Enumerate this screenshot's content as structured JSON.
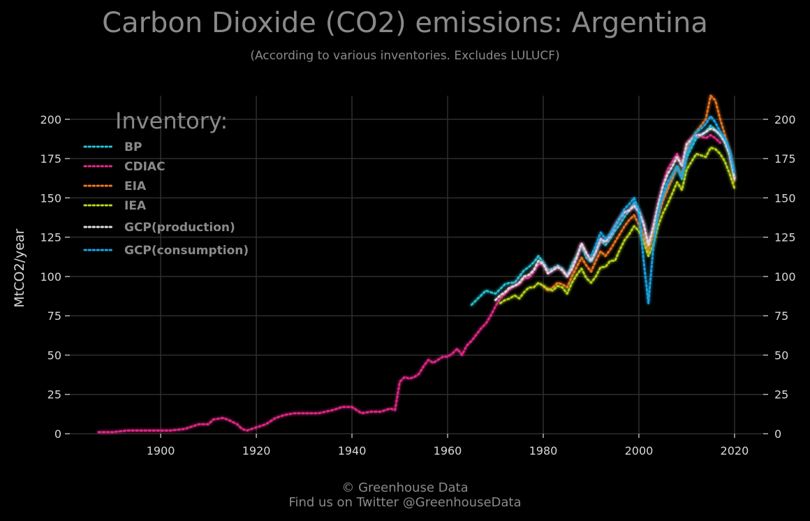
{
  "title": "Carbon Dioxide (CO2) emissions: Argentina",
  "subtitle": "(According to various inventories. Excludes LULUCF)",
  "footer": {
    "line1": "© Greenhouse Data",
    "line2": "Find us on Twitter @GreenhouseData"
  },
  "chart_data": {
    "type": "line",
    "title": "Carbon Dioxide (CO2) emissions: Argentina",
    "subtitle": "(According to various inventories. Excludes LULUCF)",
    "ylabel": "MtCO2/year",
    "xlabel": "",
    "xlim": [
      1881,
      2026
    ],
    "ylim": [
      0,
      215
    ],
    "xticks": [
      1900,
      1920,
      1940,
      1960,
      1980,
      2000,
      2020
    ],
    "yticks": [
      0,
      25,
      50,
      75,
      100,
      125,
      150,
      175,
      200
    ],
    "grid": true,
    "legend": {
      "title": "Inventory:",
      "position": "top-left"
    },
    "series": [
      {
        "name": "BP",
        "color": "#22c7d6",
        "x": [
          1965,
          1966,
          1967,
          1968,
          1969,
          1970,
          1971,
          1972,
          1973,
          1974,
          1975,
          1976,
          1977,
          1978,
          1979,
          1980,
          1981,
          1982,
          1983,
          1984,
          1985,
          1986,
          1987,
          1988,
          1989,
          1990,
          1991,
          1992,
          1993,
          1994,
          1995,
          1996,
          1997,
          1998,
          1999,
          2000,
          2001,
          2002,
          2003,
          2004,
          2005,
          2006,
          2007,
          2008,
          2009,
          2010,
          2011,
          2012,
          2013,
          2014,
          2015,
          2016,
          2017,
          2018,
          2019,
          2020
        ],
        "y": [
          82,
          85,
          88,
          91,
          90,
          89,
          92,
          95,
          96,
          96,
          100,
          104,
          106,
          109,
          113,
          109,
          104,
          105,
          107,
          105,
          100,
          108,
          113,
          120,
          112,
          109,
          115,
          123,
          120,
          124,
          129,
          133,
          138,
          142,
          147,
          142,
          134,
          120,
          131,
          142,
          150,
          157,
          162,
          170,
          162,
          176,
          182,
          188,
          190,
          192,
          196,
          193,
          190,
          186,
          178,
          163
        ]
      },
      {
        "name": "CDIAC",
        "color": "#e82a8c",
        "x": [
          1887,
          1890,
          1893,
          1896,
          1899,
          1902,
          1905,
          1908,
          1910,
          1911,
          1913,
          1914,
          1916,
          1917,
          1918,
          1920,
          1922,
          1924,
          1926,
          1928,
          1930,
          1933,
          1936,
          1938,
          1940,
          1942,
          1944,
          1946,
          1948,
          1949,
          1950,
          1951,
          1952,
          1953,
          1954,
          1955,
          1956,
          1957,
          1958,
          1959,
          1960,
          1961,
          1962,
          1963,
          1964,
          1965,
          1966,
          1967,
          1968,
          1969,
          1970,
          1971,
          1972,
          1973,
          1974,
          1975,
          1976,
          1977,
          1978,
          1979,
          1980,
          1981,
          1982,
          1983,
          1984,
          1985,
          1986,
          1987,
          1988,
          1989,
          1990,
          1991,
          1992,
          1993,
          1994,
          1995,
          1996,
          1997,
          1998,
          1999,
          2000,
          2001,
          2002,
          2003,
          2004,
          2005,
          2006,
          2007,
          2008,
          2009,
          2010,
          2011,
          2012,
          2013,
          2014,
          2015,
          2016,
          2017
        ],
        "y": [
          1,
          1,
          2,
          2,
          2,
          2,
          3,
          6,
          6,
          9,
          10,
          9,
          6,
          3,
          2,
          4,
          6,
          10,
          12,
          13,
          13,
          13,
          15,
          17,
          17,
          13,
          14,
          14,
          16,
          15,
          33,
          36,
          35,
          36,
          38,
          43,
          47,
          45,
          47,
          49,
          49,
          51,
          54,
          50,
          56,
          59,
          63,
          67,
          70,
          75,
          81,
          86,
          89,
          92,
          94,
          95,
          99,
          99,
          103,
          108,
          108,
          102,
          104,
          106,
          104,
          100,
          104,
          112,
          121,
          115,
          110,
          116,
          124,
          122,
          126,
          132,
          137,
          141,
          142,
          145,
          141,
          133,
          120,
          132,
          146,
          158,
          168,
          173,
          178,
          171,
          185,
          188,
          190,
          189,
          188,
          190,
          188,
          185
        ]
      },
      {
        "name": "EIA",
        "color": "#f07820",
        "x": [
          1980,
          1981,
          1982,
          1983,
          1984,
          1985,
          1986,
          1987,
          1988,
          1989,
          1990,
          1991,
          1992,
          1993,
          1994,
          1995,
          1996,
          1997,
          1998,
          1999,
          2000,
          2001,
          2002,
          2003,
          2004,
          2005,
          2006,
          2007,
          2008,
          2009,
          2010,
          2011,
          2012,
          2013,
          2014,
          2015,
          2016,
          2017,
          2018,
          2019,
          2020
        ],
        "y": [
          94,
          91,
          93,
          96,
          95,
          93,
          100,
          106,
          112,
          107,
          103,
          110,
          116,
          113,
          117,
          122,
          127,
          132,
          136,
          139,
          133,
          126,
          116,
          127,
          138,
          148,
          155,
          163,
          170,
          164,
          180,
          187,
          192,
          196,
          200,
          215,
          212,
          200,
          190,
          178,
          160
        ]
      },
      {
        "name": "IEA",
        "color": "#b8d81a",
        "x": [
          1971,
          1972,
          1973,
          1974,
          1975,
          1976,
          1977,
          1978,
          1979,
          1980,
          1981,
          1982,
          1983,
          1984,
          1985,
          1986,
          1987,
          1988,
          1989,
          1990,
          1991,
          1992,
          1993,
          1994,
          1995,
          1996,
          1997,
          1998,
          1999,
          2000,
          2001,
          2002,
          2003,
          2004,
          2005,
          2006,
          2007,
          2008,
          2009,
          2010,
          2011,
          2012,
          2013,
          2014,
          2015,
          2016,
          2017,
          2018,
          2019,
          2020
        ],
        "y": [
          83,
          85,
          86,
          88,
          86,
          90,
          93,
          93,
          96,
          94,
          92,
          91,
          94,
          93,
          89,
          96,
          101,
          105,
          99,
          96,
          100,
          106,
          106,
          110,
          110,
          117,
          123,
          127,
          132,
          129,
          122,
          113,
          120,
          132,
          140,
          146,
          153,
          160,
          155,
          168,
          173,
          178,
          177,
          176,
          182,
          181,
          178,
          173,
          165,
          156
        ]
      },
      {
        "name": "GCP(production)",
        "color": "#e0e0e0",
        "x": [
          1970,
          1971,
          1972,
          1973,
          1974,
          1975,
          1976,
          1977,
          1978,
          1979,
          1980,
          1981,
          1982,
          1983,
          1984,
          1985,
          1986,
          1987,
          1988,
          1989,
          1990,
          1991,
          1992,
          1993,
          1994,
          1995,
          1996,
          1997,
          1998,
          1999,
          2000,
          2001,
          2002,
          2003,
          2004,
          2005,
          2006,
          2007,
          2008,
          2009,
          2010,
          2011,
          2012,
          2013,
          2014,
          2015,
          2016,
          2017,
          2018,
          2019,
          2020
        ],
        "y": [
          85,
          88,
          90,
          93,
          94,
          96,
          100,
          101,
          104,
          110,
          108,
          102,
          104,
          106,
          104,
          100,
          105,
          112,
          121,
          115,
          110,
          116,
          124,
          122,
          126,
          132,
          137,
          141,
          142,
          145,
          141,
          133,
          120,
          131,
          145,
          157,
          165,
          170,
          176,
          170,
          184,
          187,
          190,
          190,
          192,
          194,
          193,
          190,
          185,
          177,
          162
        ]
      },
      {
        "name": "GCP(consumption)",
        "color": "#1aa6e6",
        "x": [
          1990,
          1991,
          1992,
          1993,
          1994,
          1995,
          1996,
          1997,
          1998,
          1999,
          2000,
          2001,
          2002,
          2003,
          2004,
          2005,
          2006,
          2007,
          2008,
          2009,
          2010,
          2011,
          2012,
          2013,
          2014,
          2015,
          2016,
          2017,
          2018,
          2019,
          2020
        ],
        "y": [
          113,
          120,
          128,
          124,
          127,
          132,
          137,
          143,
          146,
          150,
          142,
          110,
          83,
          118,
          140,
          152,
          160,
          165,
          170,
          163,
          178,
          185,
          192,
          194,
          197,
          202,
          198,
          192,
          188,
          180,
          165
        ]
      }
    ]
  }
}
